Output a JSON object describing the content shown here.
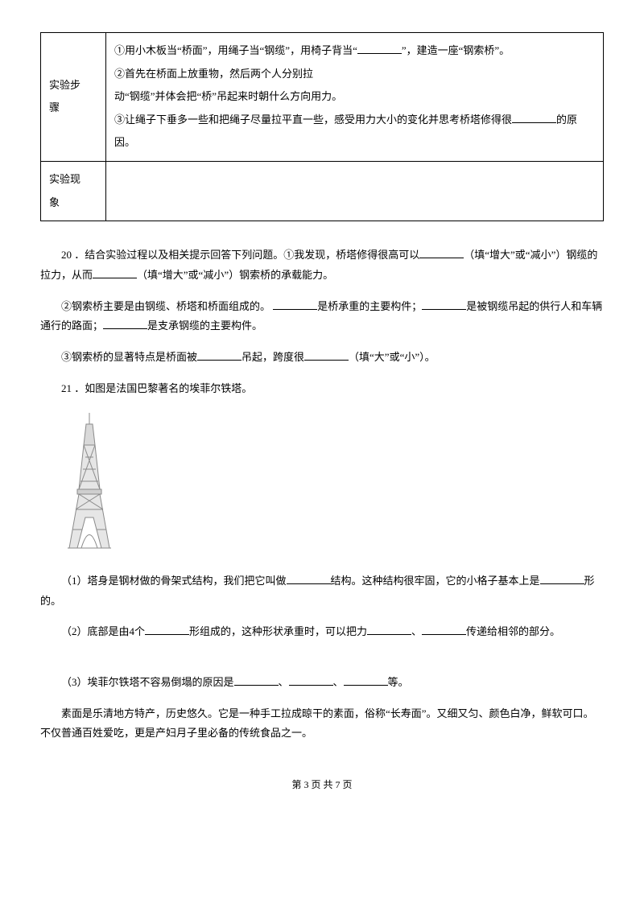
{
  "table": {
    "row1_label": "实验步\n骤",
    "row1_cell": {
      "p1a": "①用小木板当“桥面”，用绳子当“钢缆”，用椅子背当“",
      "p1b": "”，建造一座“钢索桥”。",
      "p2": "②首先在桥面上放重物，然后两个人分别拉",
      "p3": "动“钢缆”并体会把“桥”吊起来时朝什么方向用力。",
      "p4a": "③让绳子下垂多一些和把绳子尽量拉平直一些，感受用力大小的变化并思考桥塔修得很",
      "p4b": "的原因。"
    },
    "row2_label": "实验现\n象",
    "row2_cell": ""
  },
  "q20": {
    "lead1a": "20 ．结合实验过程以及相关提示回答下列问题。①我发现，桥塔修得很高可以",
    "lead1b": "（填“增大”或“减小”）钢缆的拉力，从而",
    "lead1c": "（填“增大”或“减小”）钢索桥的承载能力。",
    "p2a": "②钢索桥主要是由钢缆、桥塔和桥面组成的。",
    "p2b": "是桥承重的主要构件；",
    "p2c": "是被钢缆吊起的供行人和车辆通行的路面；",
    "p2d": "是支承钢缆的主要构件。",
    "p3a": "③钢索桥的显著特点是桥面被",
    "p3b": "吊起，跨度很",
    "p3c": "（填“大”或“小”）。"
  },
  "q21": {
    "lead": "21 ．如图是法国巴黎著名的埃菲尔铁塔。",
    "p1a": "（1）塔身是钢材做的骨架式结构，我们把它叫做",
    "p1b": "结构。这种结构很牢固，它的小格子基本上是",
    "p1c": "形的。",
    "p2a": "（2）底部是由4个",
    "p2b": "形组成的，这种形状承重时，可以把力",
    "p2c": "、",
    "p2d": "传递给相邻的部分。",
    "p3a": "（3）埃菲尔铁塔不容易倒塌的原因是",
    "p3b": "、",
    "p3c": "、",
    "p3d": "等。"
  },
  "tail": "素面是乐清地方特产，历史悠久。它是一种手工拉成晾干的素面，俗称“长寿面”。又细又匀、颜色白净，鲜软可口。不仅普通百姓爱吃，更是产妇月子里必备的传统食品之一。",
  "footer": "第 3 页 共 7 页",
  "tower": {
    "stroke": "#8a8a8a",
    "fill": "#bfbfbf",
    "width": 70,
    "height": 170
  }
}
